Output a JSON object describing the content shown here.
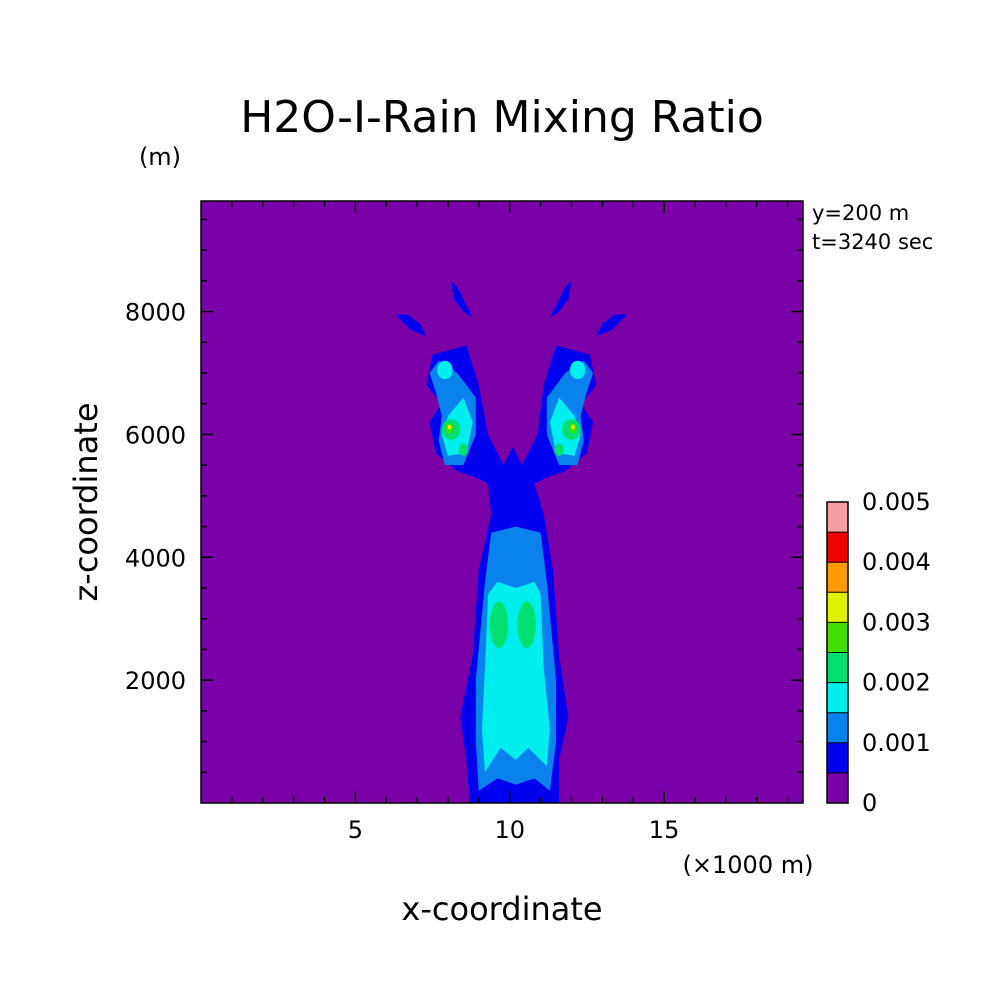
{
  "chart_data": {
    "type": "heatmap",
    "title": "H2O-I-Rain Mixing Ratio",
    "xlabel": "x-coordinate",
    "ylabel": "z-coordinate",
    "x_unit": "(×1000 m)",
    "y_unit": "(m)",
    "annotations": [
      "y=200 m",
      "t=3240 sec"
    ],
    "xlim": [
      0,
      19.5
    ],
    "ylim": [
      0,
      9800
    ],
    "x_ticks": [
      5,
      10,
      15
    ],
    "y_ticks": [
      2000,
      4000,
      6000,
      8000
    ],
    "colorbar": {
      "levels": [
        0,
        0.0005,
        0.001,
        0.0015,
        0.002,
        0.0025,
        0.003,
        0.0035,
        0.004,
        0.0045,
        0.005
      ],
      "labels": [
        "0",
        "0.001",
        "0.002",
        "0.003",
        "0.004",
        "0.005"
      ],
      "colors": [
        "#7a00a8",
        "#0000ee",
        "#0a82ee",
        "#00eeee",
        "#00e070",
        "#40e000",
        "#e0f000",
        "#ff9a00",
        "#f00000",
        "#f4a0a0"
      ]
    },
    "background_value": 0,
    "field_regions": [
      {
        "level": 1,
        "x": [
          8.6,
          11.6
        ],
        "z": [
          0,
          4600
        ],
        "desc": "central column"
      },
      {
        "level": 2,
        "x": [
          9.0,
          11.1
        ],
        "z": [
          300,
          4400
        ],
        "desc": "central column"
      },
      {
        "level": 3,
        "x": [
          9.2,
          10.9
        ],
        "z": [
          400,
          3500
        ],
        "desc": "central column"
      },
      {
        "level": 4,
        "x": [
          9.4,
          10.6
        ],
        "z": [
          2400,
          3300
        ],
        "desc": "central cores"
      },
      {
        "level": 2,
        "x": [
          7.3,
          8.9
        ],
        "z": [
          5300,
          7200
        ],
        "desc": "left arm"
      },
      {
        "level": 5,
        "x": [
          7.9,
          8.3
        ],
        "z": [
          5950,
          6200
        ],
        "desc": "left arm core"
      },
      {
        "level": 2,
        "x": [
          11.0,
          12.6
        ],
        "z": [
          5300,
          7200
        ],
        "desc": "right arm"
      },
      {
        "level": 5,
        "x": [
          11.7,
          12.1
        ],
        "z": [
          5950,
          6200
        ],
        "desc": "right arm core"
      }
    ],
    "max_value": 0.0035
  },
  "colors": {
    "background_field": "#7a00a8",
    "axes": "#000000"
  }
}
